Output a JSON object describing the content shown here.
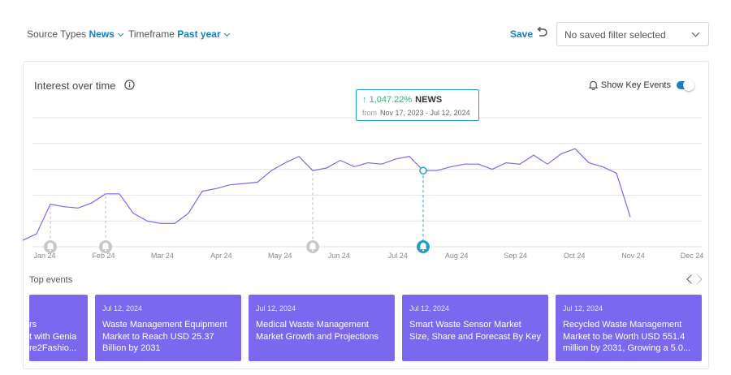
{
  "filters": {
    "source_label": "Source Types",
    "source_value": "News",
    "timeframe_label": "Timeframe",
    "timeframe_value": "Past year",
    "save_label": "Save",
    "saved_filter_value": "No saved filter selected"
  },
  "card": {
    "title": "Interest over time",
    "key_events_label": "Show Key Events",
    "key_events_on": true
  },
  "tooltip": {
    "change": "1,047.22%",
    "source": "NEWS",
    "from_label": "from",
    "range": "Nov 17, 2023 - Jul 12, 2024"
  },
  "colors": {
    "accent": "#1a7fc1",
    "line": "#7b68ee",
    "event_card": "#7b68ee",
    "positive": "#2eb872",
    "marker": "#1fa0c4"
  },
  "chart_data": {
    "type": "line",
    "title": "Interest over time",
    "x_tick_labels": [
      "Jan 24",
      "Feb 24",
      "Mar 24",
      "Apr 24",
      "May 24",
      "Jun 24",
      "Jul 24",
      "Aug 24",
      "Sep 24",
      "Oct 24",
      "Nov 24",
      "Dec 24"
    ],
    "ylim": [
      0,
      100
    ],
    "grid": true,
    "series": [
      {
        "values": [
          5,
          10,
          33,
          31,
          30,
          34,
          41,
          41,
          26,
          20,
          18,
          18,
          26,
          43,
          45,
          48,
          49,
          50,
          59,
          65,
          70,
          59,
          61,
          67,
          62,
          65,
          64,
          68,
          70,
          59,
          59,
          62,
          64,
          64,
          60,
          65,
          64,
          71,
          64,
          72,
          76,
          65,
          62,
          57,
          23
        ]
      }
    ],
    "key_event_indices": [
      2,
      6,
      21,
      29
    ],
    "selected_index": 29
  },
  "top_events": {
    "label": "Top events",
    "items": [
      {
        "date": "",
        "title": "rs\nt with Genia\nre2Fashio..."
      },
      {
        "date": "Jul 12, 2024",
        "title": "Waste Management Equipment Market to Reach USD 25.37 Billion by 2031"
      },
      {
        "date": "Jul 12, 2024",
        "title": "Medical Waste Management Market Growth and Projections"
      },
      {
        "date": "Jul 12, 2024",
        "title": "Smart Waste Sensor Market Size, Share and Forecast By Key"
      },
      {
        "date": "Jul 12, 2024",
        "title": "Recycled Waste Management Market to be Worth USD 551.4 million by 2031, Growing a 5.0..."
      }
    ]
  }
}
